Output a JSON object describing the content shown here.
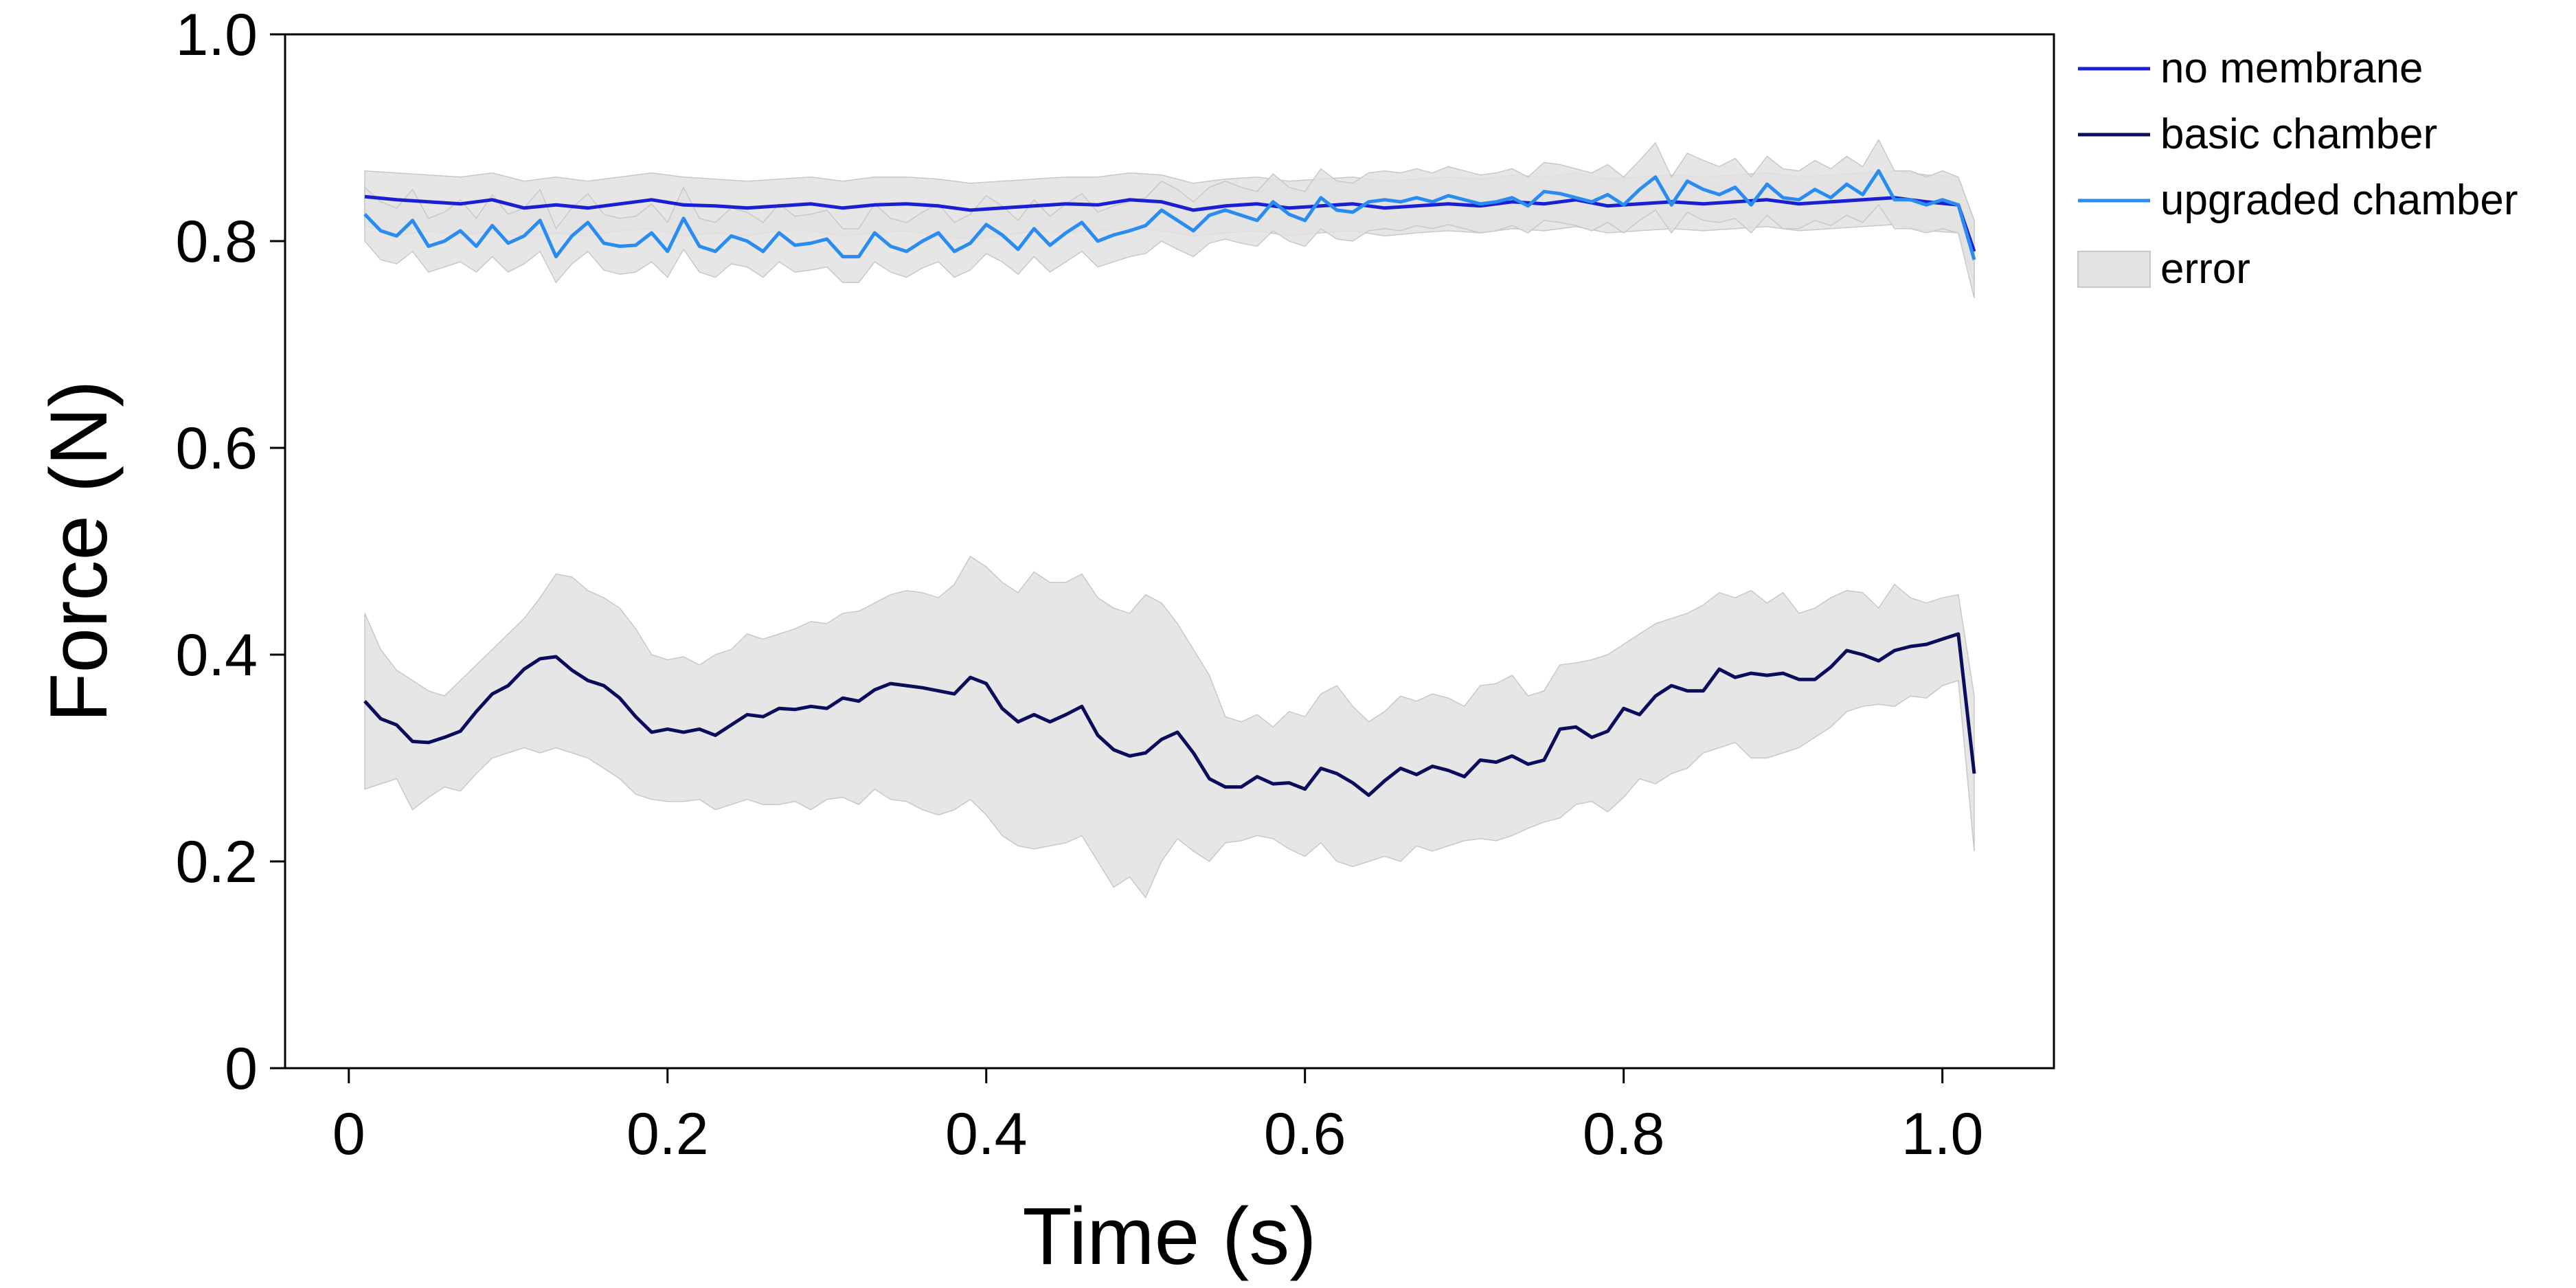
{
  "chart_data": {
    "type": "line",
    "xlabel": "Time (s)",
    "ylabel": "Force (N)",
    "xlim": [
      -0.04,
      1.07
    ],
    "ylim": [
      0,
      1.0
    ],
    "x_ticks": [
      {
        "value": 0,
        "label": "0"
      },
      {
        "value": 0.2,
        "label": "0.2"
      },
      {
        "value": 0.4,
        "label": "0.4"
      },
      {
        "value": 0.6,
        "label": "0.6"
      },
      {
        "value": 0.8,
        "label": "0.8"
      },
      {
        "value": 1.0,
        "label": "1.0"
      }
    ],
    "y_ticks": [
      {
        "value": 0,
        "label": "0"
      },
      {
        "value": 0.2,
        "label": "0.2"
      },
      {
        "value": 0.4,
        "label": "0.4"
      },
      {
        "value": 0.6,
        "label": "0.6"
      },
      {
        "value": 0.8,
        "label": "0.8"
      },
      {
        "value": 1.0,
        "label": "1.0"
      }
    ],
    "grid": false,
    "legend_position": "outside-top-right",
    "error_label": "error",
    "error_color": "#e2e2e2",
    "series": [
      {
        "name": "no membrane",
        "color": "#1a1fd4",
        "x": [
          0.01,
          0.03,
          0.05,
          0.07,
          0.09,
          0.11,
          0.13,
          0.15,
          0.17,
          0.19,
          0.21,
          0.23,
          0.25,
          0.27,
          0.29,
          0.31,
          0.33,
          0.35,
          0.37,
          0.39,
          0.41,
          0.43,
          0.45,
          0.47,
          0.49,
          0.51,
          0.53,
          0.55,
          0.57,
          0.59,
          0.61,
          0.63,
          0.65,
          0.67,
          0.69,
          0.71,
          0.73,
          0.75,
          0.77,
          0.79,
          0.81,
          0.83,
          0.85,
          0.87,
          0.89,
          0.91,
          0.93,
          0.95,
          0.97,
          0.99,
          1.01,
          1.02
        ],
        "values": [
          0.843,
          0.84,
          0.838,
          0.836,
          0.84,
          0.832,
          0.835,
          0.832,
          0.836,
          0.84,
          0.835,
          0.834,
          0.832,
          0.834,
          0.836,
          0.832,
          0.835,
          0.836,
          0.834,
          0.83,
          0.832,
          0.834,
          0.836,
          0.835,
          0.84,
          0.838,
          0.83,
          0.834,
          0.836,
          0.832,
          0.834,
          0.836,
          0.832,
          0.834,
          0.836,
          0.834,
          0.838,
          0.836,
          0.84,
          0.834,
          0.836,
          0.838,
          0.836,
          0.838,
          0.84,
          0.836,
          0.838,
          0.84,
          0.842,
          0.838,
          0.835,
          0.79
        ],
        "lower": [
          0.815,
          0.805,
          0.81,
          0.805,
          0.81,
          0.805,
          0.808,
          0.805,
          0.81,
          0.812,
          0.805,
          0.808,
          0.805,
          0.81,
          0.81,
          0.805,
          0.808,
          0.81,
          0.805,
          0.802,
          0.805,
          0.81,
          0.808,
          0.81,
          0.812,
          0.81,
          0.805,
          0.808,
          0.81,
          0.805,
          0.808,
          0.81,
          0.805,
          0.808,
          0.81,
          0.808,
          0.812,
          0.81,
          0.814,
          0.808,
          0.81,
          0.812,
          0.81,
          0.812,
          0.814,
          0.81,
          0.812,
          0.814,
          0.816,
          0.81,
          0.808,
          0.76
        ],
        "upper": [
          0.868,
          0.866,
          0.864,
          0.862,
          0.866,
          0.858,
          0.862,
          0.858,
          0.862,
          0.866,
          0.862,
          0.86,
          0.858,
          0.86,
          0.862,
          0.858,
          0.862,
          0.862,
          0.86,
          0.856,
          0.858,
          0.86,
          0.862,
          0.862,
          0.866,
          0.864,
          0.856,
          0.86,
          0.862,
          0.858,
          0.86,
          0.862,
          0.858,
          0.86,
          0.862,
          0.86,
          0.864,
          0.862,
          0.866,
          0.86,
          0.862,
          0.864,
          0.862,
          0.864,
          0.866,
          0.862,
          0.864,
          0.866,
          0.868,
          0.864,
          0.862,
          0.82
        ]
      },
      {
        "name": "basic chamber",
        "color": "#0c0c5c",
        "x": [
          0.01,
          0.02,
          0.03,
          0.04,
          0.05,
          0.06,
          0.07,
          0.08,
          0.09,
          0.1,
          0.11,
          0.12,
          0.13,
          0.14,
          0.15,
          0.16,
          0.17,
          0.18,
          0.19,
          0.2,
          0.21,
          0.22,
          0.23,
          0.24,
          0.25,
          0.26,
          0.27,
          0.28,
          0.29,
          0.3,
          0.31,
          0.32,
          0.33,
          0.34,
          0.35,
          0.36,
          0.37,
          0.38,
          0.39,
          0.4,
          0.41,
          0.42,
          0.43,
          0.44,
          0.45,
          0.46,
          0.47,
          0.48,
          0.49,
          0.5,
          0.51,
          0.52,
          0.53,
          0.54,
          0.55,
          0.56,
          0.57,
          0.58,
          0.59,
          0.6,
          0.61,
          0.62,
          0.63,
          0.64,
          0.65,
          0.66,
          0.67,
          0.68,
          0.69,
          0.7,
          0.71,
          0.72,
          0.73,
          0.74,
          0.75,
          0.76,
          0.77,
          0.78,
          0.79,
          0.8,
          0.81,
          0.82,
          0.83,
          0.84,
          0.85,
          0.86,
          0.87,
          0.88,
          0.89,
          0.9,
          0.91,
          0.92,
          0.93,
          0.94,
          0.95,
          0.96,
          0.97,
          0.98,
          0.99,
          1.0,
          1.01,
          1.02
        ],
        "values": [
          0.355,
          0.338,
          0.332,
          0.316,
          0.315,
          0.32,
          0.326,
          0.345,
          0.362,
          0.37,
          0.386,
          0.396,
          0.398,
          0.385,
          0.375,
          0.37,
          0.358,
          0.34,
          0.325,
          0.328,
          0.325,
          0.328,
          0.322,
          0.332,
          0.342,
          0.34,
          0.348,
          0.347,
          0.35,
          0.348,
          0.358,
          0.355,
          0.366,
          0.372,
          0.37,
          0.368,
          0.365,
          0.362,
          0.378,
          0.372,
          0.348,
          0.335,
          0.342,
          0.335,
          0.342,
          0.35,
          0.322,
          0.308,
          0.302,
          0.305,
          0.318,
          0.325,
          0.305,
          0.28,
          0.272,
          0.272,
          0.282,
          0.275,
          0.276,
          0.27,
          0.29,
          0.285,
          0.276,
          0.264,
          0.278,
          0.29,
          0.284,
          0.292,
          0.288,
          0.282,
          0.298,
          0.296,
          0.302,
          0.294,
          0.298,
          0.328,
          0.33,
          0.32,
          0.326,
          0.348,
          0.342,
          0.36,
          0.37,
          0.365,
          0.365,
          0.386,
          0.378,
          0.382,
          0.38,
          0.382,
          0.376,
          0.376,
          0.388,
          0.404,
          0.4,
          0.394,
          0.404,
          0.408,
          0.41,
          0.415,
          0.42,
          0.285
        ],
        "lower": [
          0.27,
          0.275,
          0.28,
          0.25,
          0.262,
          0.272,
          0.268,
          0.285,
          0.3,
          0.305,
          0.31,
          0.305,
          0.31,
          0.305,
          0.3,
          0.29,
          0.28,
          0.265,
          0.26,
          0.258,
          0.258,
          0.26,
          0.25,
          0.255,
          0.26,
          0.255,
          0.255,
          0.258,
          0.25,
          0.26,
          0.262,
          0.255,
          0.27,
          0.26,
          0.258,
          0.25,
          0.245,
          0.25,
          0.26,
          0.245,
          0.225,
          0.215,
          0.212,
          0.215,
          0.218,
          0.225,
          0.2,
          0.175,
          0.185,
          0.165,
          0.2,
          0.222,
          0.21,
          0.2,
          0.218,
          0.22,
          0.225,
          0.222,
          0.212,
          0.205,
          0.218,
          0.2,
          0.195,
          0.2,
          0.205,
          0.2,
          0.215,
          0.21,
          0.215,
          0.22,
          0.222,
          0.22,
          0.225,
          0.232,
          0.238,
          0.242,
          0.255,
          0.258,
          0.248,
          0.262,
          0.28,
          0.275,
          0.285,
          0.29,
          0.305,
          0.31,
          0.315,
          0.3,
          0.3,
          0.305,
          0.31,
          0.32,
          0.33,
          0.345,
          0.35,
          0.352,
          0.35,
          0.36,
          0.358,
          0.37,
          0.375,
          0.21
        ],
        "upper": [
          0.44,
          0.405,
          0.385,
          0.375,
          0.365,
          0.36,
          0.375,
          0.39,
          0.405,
          0.42,
          0.435,
          0.455,
          0.478,
          0.475,
          0.462,
          0.455,
          0.445,
          0.425,
          0.4,
          0.395,
          0.398,
          0.39,
          0.4,
          0.405,
          0.42,
          0.415,
          0.42,
          0.425,
          0.432,
          0.43,
          0.44,
          0.442,
          0.45,
          0.458,
          0.462,
          0.46,
          0.455,
          0.468,
          0.495,
          0.485,
          0.47,
          0.46,
          0.48,
          0.47,
          0.47,
          0.478,
          0.455,
          0.445,
          0.44,
          0.458,
          0.45,
          0.43,
          0.405,
          0.38,
          0.34,
          0.335,
          0.342,
          0.33,
          0.345,
          0.34,
          0.362,
          0.37,
          0.35,
          0.335,
          0.345,
          0.36,
          0.355,
          0.362,
          0.358,
          0.35,
          0.37,
          0.372,
          0.38,
          0.36,
          0.365,
          0.39,
          0.392,
          0.395,
          0.4,
          0.41,
          0.42,
          0.43,
          0.435,
          0.44,
          0.448,
          0.46,
          0.455,
          0.462,
          0.45,
          0.46,
          0.44,
          0.445,
          0.455,
          0.462,
          0.46,
          0.445,
          0.468,
          0.455,
          0.45,
          0.455,
          0.458,
          0.36
        ]
      },
      {
        "name": "upgraded chamber",
        "color": "#2a8cf0",
        "x": [
          0.01,
          0.02,
          0.03,
          0.04,
          0.05,
          0.06,
          0.07,
          0.08,
          0.09,
          0.1,
          0.11,
          0.12,
          0.13,
          0.14,
          0.15,
          0.16,
          0.17,
          0.18,
          0.19,
          0.2,
          0.21,
          0.22,
          0.23,
          0.24,
          0.25,
          0.26,
          0.27,
          0.28,
          0.29,
          0.3,
          0.31,
          0.32,
          0.33,
          0.34,
          0.35,
          0.36,
          0.37,
          0.38,
          0.39,
          0.4,
          0.41,
          0.42,
          0.43,
          0.44,
          0.45,
          0.46,
          0.47,
          0.48,
          0.49,
          0.5,
          0.51,
          0.52,
          0.53,
          0.54,
          0.55,
          0.56,
          0.57,
          0.58,
          0.59,
          0.6,
          0.61,
          0.62,
          0.63,
          0.64,
          0.65,
          0.66,
          0.67,
          0.68,
          0.69,
          0.7,
          0.71,
          0.72,
          0.73,
          0.74,
          0.75,
          0.76,
          0.77,
          0.78,
          0.79,
          0.8,
          0.81,
          0.82,
          0.83,
          0.84,
          0.85,
          0.86,
          0.87,
          0.88,
          0.89,
          0.9,
          0.91,
          0.92,
          0.93,
          0.94,
          0.95,
          0.96,
          0.97,
          0.98,
          0.99,
          1.0,
          1.01,
          1.02
        ],
        "values": [
          0.826,
          0.81,
          0.805,
          0.82,
          0.795,
          0.8,
          0.81,
          0.795,
          0.815,
          0.798,
          0.805,
          0.82,
          0.785,
          0.805,
          0.818,
          0.798,
          0.795,
          0.796,
          0.808,
          0.79,
          0.822,
          0.795,
          0.79,
          0.805,
          0.8,
          0.79,
          0.808,
          0.796,
          0.798,
          0.802,
          0.785,
          0.785,
          0.808,
          0.795,
          0.79,
          0.8,
          0.808,
          0.79,
          0.798,
          0.816,
          0.806,
          0.792,
          0.812,
          0.796,
          0.808,
          0.818,
          0.8,
          0.806,
          0.81,
          0.815,
          0.83,
          0.82,
          0.81,
          0.825,
          0.83,
          0.825,
          0.82,
          0.838,
          0.826,
          0.82,
          0.842,
          0.83,
          0.828,
          0.838,
          0.84,
          0.838,
          0.842,
          0.838,
          0.844,
          0.84,
          0.836,
          0.838,
          0.842,
          0.834,
          0.848,
          0.846,
          0.842,
          0.838,
          0.845,
          0.835,
          0.85,
          0.862,
          0.835,
          0.858,
          0.85,
          0.845,
          0.852,
          0.835,
          0.855,
          0.842,
          0.84,
          0.85,
          0.842,
          0.855,
          0.845,
          0.868,
          0.84,
          0.84,
          0.835,
          0.84,
          0.835,
          0.782
        ],
        "lower": [
          0.8,
          0.782,
          0.778,
          0.79,
          0.77,
          0.775,
          0.78,
          0.77,
          0.785,
          0.77,
          0.778,
          0.79,
          0.76,
          0.778,
          0.79,
          0.772,
          0.768,
          0.77,
          0.78,
          0.765,
          0.792,
          0.77,
          0.765,
          0.778,
          0.775,
          0.765,
          0.78,
          0.77,
          0.772,
          0.775,
          0.76,
          0.76,
          0.78,
          0.77,
          0.765,
          0.774,
          0.78,
          0.765,
          0.772,
          0.788,
          0.78,
          0.768,
          0.785,
          0.77,
          0.78,
          0.79,
          0.775,
          0.78,
          0.785,
          0.788,
          0.8,
          0.792,
          0.785,
          0.798,
          0.802,
          0.798,
          0.795,
          0.81,
          0.8,
          0.795,
          0.812,
          0.802,
          0.8,
          0.81,
          0.812,
          0.81,
          0.815,
          0.812,
          0.816,
          0.812,
          0.808,
          0.81,
          0.815,
          0.808,
          0.82,
          0.818,
          0.815,
          0.81,
          0.818,
          0.808,
          0.82,
          0.83,
          0.808,
          0.828,
          0.82,
          0.818,
          0.822,
          0.808,
          0.825,
          0.812,
          0.812,
          0.82,
          0.815,
          0.825,
          0.818,
          0.835,
          0.812,
          0.812,
          0.808,
          0.812,
          0.808,
          0.745
        ],
        "upper": [
          0.852,
          0.838,
          0.832,
          0.85,
          0.822,
          0.828,
          0.84,
          0.822,
          0.845,
          0.826,
          0.832,
          0.85,
          0.812,
          0.832,
          0.846,
          0.826,
          0.822,
          0.824,
          0.836,
          0.818,
          0.852,
          0.822,
          0.818,
          0.832,
          0.828,
          0.818,
          0.836,
          0.824,
          0.826,
          0.83,
          0.812,
          0.812,
          0.836,
          0.822,
          0.818,
          0.828,
          0.836,
          0.818,
          0.826,
          0.844,
          0.834,
          0.82,
          0.84,
          0.824,
          0.836,
          0.846,
          0.828,
          0.834,
          0.838,
          0.842,
          0.858,
          0.85,
          0.838,
          0.852,
          0.858,
          0.852,
          0.848,
          0.865,
          0.852,
          0.848,
          0.87,
          0.858,
          0.856,
          0.866,
          0.868,
          0.866,
          0.87,
          0.866,
          0.872,
          0.868,
          0.864,
          0.866,
          0.87,
          0.862,
          0.876,
          0.874,
          0.87,
          0.866,
          0.874,
          0.862,
          0.878,
          0.895,
          0.862,
          0.885,
          0.878,
          0.872,
          0.88,
          0.862,
          0.882,
          0.87,
          0.868,
          0.878,
          0.87,
          0.882,
          0.872,
          0.898,
          0.868,
          0.868,
          0.862,
          0.868,
          0.862,
          0.82
        ]
      }
    ]
  }
}
